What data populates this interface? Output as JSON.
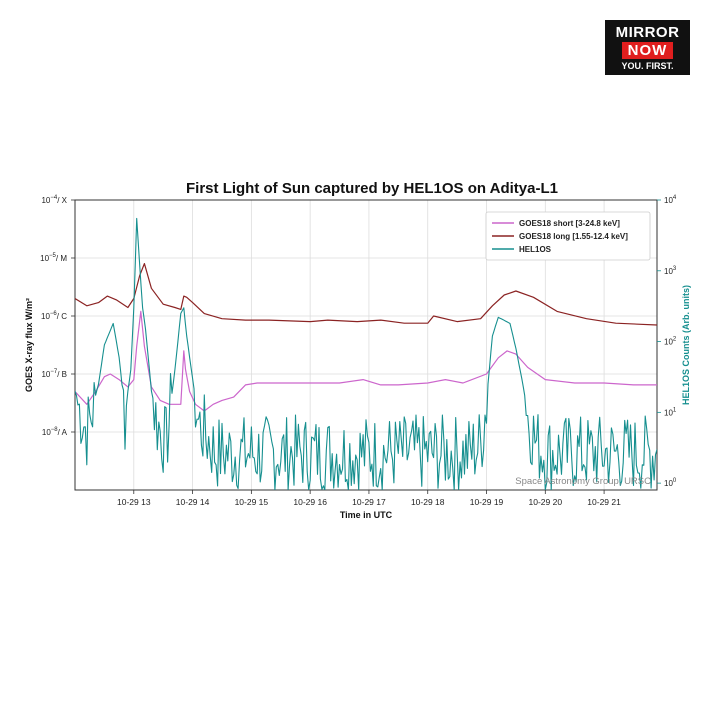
{
  "logo": {
    "line1": "MIRROR",
    "line2": "NOW",
    "line3": "YOU. FIRST."
  },
  "chart_data": {
    "type": "line",
    "title": "First Light of Sun captured by HEL1OS on Aditya-L1",
    "xlabel": "Time in UTC",
    "ylabel_left": "GOES X-ray flux W/m²",
    "ylabel_right": "HEL1OS Counts (Arb. units)",
    "watermark": "Space Astronomy Group, URSC",
    "x_range_hours": [
      12.0,
      21.9
    ],
    "x_ticks": [
      {
        "t": 13,
        "label": "10-29 13"
      },
      {
        "t": 14,
        "label": "10-29 14"
      },
      {
        "t": 15,
        "label": "10-29 15"
      },
      {
        "t": 16,
        "label": "10-29 16"
      },
      {
        "t": 17,
        "label": "10-29 17"
      },
      {
        "t": 18,
        "label": "10-29 18"
      },
      {
        "t": 19,
        "label": "10-29 19"
      },
      {
        "t": 20,
        "label": "10-29 20"
      },
      {
        "t": 21,
        "label": "10-29 21"
      }
    ],
    "y_left": {
      "scale": "log",
      "range": [
        1e-09,
        0.0001
      ],
      "ticks": [
        {
          "v": 0.0001,
          "exp": "−4",
          "cls": "X"
        },
        {
          "v": 1e-05,
          "exp": "−5",
          "cls": "M"
        },
        {
          "v": 1e-06,
          "exp": "−6",
          "cls": "C"
        },
        {
          "v": 1e-07,
          "exp": "−7",
          "cls": "B"
        },
        {
          "v": 1e-08,
          "exp": "−8",
          "cls": "A"
        }
      ]
    },
    "y_right": {
      "scale": "log",
      "range": [
        0.8,
        10000
      ],
      "ticks": [
        {
          "v": 10000,
          "exp": "4"
        },
        {
          "v": 1000,
          "exp": "3"
        },
        {
          "v": 100,
          "exp": "2"
        },
        {
          "v": 10,
          "exp": "1"
        },
        {
          "v": 1,
          "exp": "0"
        }
      ]
    },
    "grid": true,
    "legend_position": "top-right",
    "series": [
      {
        "name": "GOES18 short  [3-24.8 keV]",
        "color": "#cc66cc",
        "axis": "left",
        "x": [
          12.0,
          12.2,
          12.35,
          12.5,
          12.6,
          12.75,
          12.9,
          13.0,
          13.05,
          13.12,
          13.18,
          13.3,
          13.45,
          13.6,
          13.8,
          13.85,
          13.88,
          13.95,
          14.05,
          14.2,
          14.35,
          14.5,
          14.7,
          14.9,
          15.1,
          15.5,
          16.0,
          16.5,
          16.9,
          17.2,
          17.5,
          18.0,
          18.3,
          18.6,
          19.0,
          19.2,
          19.35,
          19.5,
          19.7,
          20.0,
          20.5,
          21.0,
          21.5,
          21.9
        ],
        "y": [
          5e-08,
          3e-08,
          5e-08,
          9e-08,
          1e-07,
          8e-08,
          6e-08,
          8e-08,
          3e-07,
          1.2e-06,
          3e-07,
          6e-08,
          3.5e-08,
          3e-08,
          3e-08,
          2.5e-07,
          1.2e-07,
          5e-08,
          3e-08,
          2.3e-08,
          3e-08,
          3.5e-08,
          4e-08,
          6.5e-08,
          7e-08,
          7e-08,
          7e-08,
          7e-08,
          8e-08,
          6.5e-08,
          6.5e-08,
          7e-08,
          8e-08,
          7e-08,
          1e-07,
          1.9e-07,
          2.5e-07,
          2.2e-07,
          1.3e-07,
          8e-08,
          7e-08,
          7e-08,
          6.5e-08,
          6.5e-08
        ]
      },
      {
        "name": "GOES18 long  [1.55-12.4 keV]",
        "color": "#8b2323",
        "axis": "left",
        "x": [
          12.0,
          12.2,
          12.4,
          12.55,
          12.7,
          12.9,
          13.0,
          13.1,
          13.18,
          13.3,
          13.5,
          13.7,
          13.8,
          13.85,
          13.9,
          14.0,
          14.2,
          14.5,
          14.9,
          15.3,
          16.0,
          16.3,
          16.8,
          17.2,
          17.6,
          18.0,
          18.1,
          18.5,
          18.9,
          19.1,
          19.3,
          19.5,
          19.8,
          20.2,
          20.7,
          21.2,
          21.9
        ],
        "y": [
          2e-06,
          1.5e-06,
          1.7e-06,
          2.2e-06,
          1.9e-06,
          1.4e-06,
          2e-06,
          5e-06,
          8e-06,
          3e-06,
          1.6e-06,
          1.4e-06,
          1.3e-06,
          2.2e-06,
          2.1e-06,
          1.7e-06,
          1.1e-06,
          9e-07,
          8.5e-07,
          8.5e-07,
          8e-07,
          8.5e-07,
          8e-07,
          8.5e-07,
          7.5e-07,
          7.5e-07,
          1e-06,
          8e-07,
          9e-07,
          1.5e-06,
          2.3e-06,
          2.7e-06,
          2.1e-06,
          1.2e-06,
          9e-07,
          7.5e-07,
          7e-07
        ]
      },
      {
        "name": "HEL1OS",
        "color": "#168f8f",
        "axis": "right",
        "x": [
          12.0,
          12.2,
          12.4,
          12.5,
          12.65,
          12.75,
          12.85,
          12.95,
          13.0,
          13.05,
          13.1,
          13.15,
          13.2,
          13.3,
          13.4,
          13.55,
          13.7,
          13.8,
          13.85,
          13.9,
          14.0,
          14.1,
          14.25,
          14.4,
          14.6,
          14.8,
          15.0,
          15.3,
          15.6,
          15.9,
          16.2,
          16.5,
          16.8,
          17.0,
          17.3,
          17.6,
          17.9,
          18.1,
          18.4,
          18.7,
          18.9,
          19.0,
          19.1,
          19.2,
          19.3,
          19.4,
          19.5,
          19.6,
          19.7,
          19.85,
          20.0,
          20.3,
          20.6,
          20.9,
          21.2,
          21.5,
          21.9
        ],
        "y": [
          20,
          6,
          25,
          90,
          180,
          60,
          10,
          40,
          300,
          5500,
          1200,
          300,
          150,
          20,
          8,
          4,
          40,
          250,
          300,
          120,
          30,
          8,
          5,
          3,
          3,
          3,
          3,
          3,
          3,
          3,
          3,
          3,
          3,
          3,
          3,
          3,
          3,
          3,
          3,
          3,
          4,
          15,
          120,
          220,
          200,
          180,
          80,
          30,
          10,
          4,
          3,
          3,
          3,
          3,
          3,
          3,
          3
        ]
      }
    ]
  }
}
